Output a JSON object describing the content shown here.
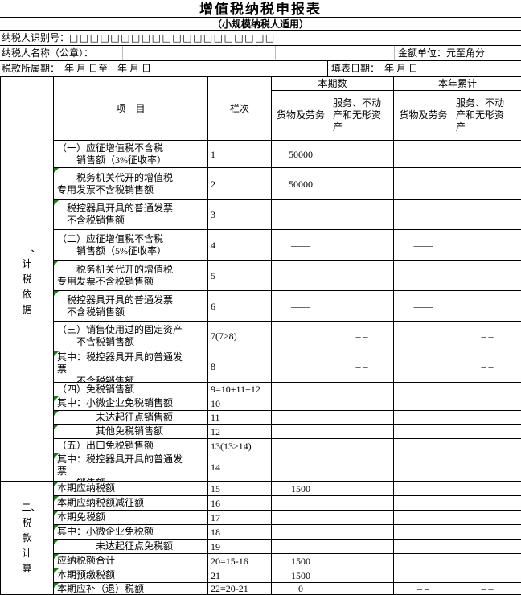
{
  "header": {
    "title": "增值税纳税申报表",
    "subtitle": "（小规模纳税人适用）",
    "taxpayer_id": {
      "label": "纳税人识别号：",
      "boxes": "□□□□□□□□□□□□□□□□□□□□"
    },
    "taxpayer_name": {
      "label": "纳税人名称（公章）：",
      "value": ""
    },
    "amount_unit": "金额单位：元至角分",
    "tax_period": "税款所属期：　年 月 日至　年 月 日",
    "fill_date": "填表日期：　年 月 日"
  },
  "table": {
    "header": {
      "item": "项　目",
      "column_no": "栏次",
      "current_period": "本期数",
      "year_to_date": "本年累计",
      "goods_and_services": "货物及劳务",
      "services_immovables_intangibles": "服务、不动\n产和无形资\n产"
    },
    "sections": [
      {
        "label": "一、计税依据"
      },
      {
        "label": "二、税款计算"
      }
    ],
    "colors": {
      "marker_green": "#1f7a1f",
      "border_black": "#000000",
      "light_grid_gray": "#bcbcbc"
    },
    "rows": [
      {
        "label": "（一）应征增值税不含税\n　　销售额（3%征收率）",
        "col": "1",
        "current_goods": "50000",
        "current_services": "",
        "ytd_goods": "",
        "ytd_services": "",
        "marker": false
      },
      {
        "label": "　　税务机关代开的增值税\n专用发票不含税销售额",
        "col": "2",
        "current_goods": "50000",
        "current_services": "",
        "ytd_goods": "",
        "ytd_services": "",
        "marker": true
      },
      {
        "label": "　税控器具开具的普通发票\n　不含税销售额",
        "col": "3",
        "current_goods": "",
        "current_services": "",
        "ytd_goods": "",
        "ytd_services": "",
        "marker": true
      },
      {
        "label": "（二）应征增值税不含税\n　　销售额（5%征收率）",
        "col": "4",
        "current_goods": "——",
        "current_services": "",
        "ytd_goods": "——",
        "ytd_services": "",
        "marker": false
      },
      {
        "label": "　　税务机关代开的增值税\n专用发票不含税销售额",
        "col": "5",
        "current_goods": "——",
        "current_services": "",
        "ytd_goods": "——",
        "ytd_services": "",
        "marker": true
      },
      {
        "label": "　税控器具开具的普通发票\n　不含税销售额",
        "col": "6",
        "current_goods": "——",
        "current_services": "",
        "ytd_goods": "——",
        "ytd_services": "",
        "marker": true
      },
      {
        "label": "（三）销售使用过的固定资产\n　　不含税销售额",
        "col": "7(7≥8)",
        "current_goods": "",
        "current_services": "– –",
        "ytd_goods": "",
        "ytd_services": "– –",
        "marker": false
      },
      {
        "label": "其中：税控器具开具的普通发\n票\n　　不含税销售额",
        "col": "8",
        "current_goods": "",
        "current_services": "– –",
        "ytd_goods": "",
        "ytd_services": "– –",
        "marker": true
      },
      {
        "label": "（四）免税销售额",
        "col": "9=10+11+12",
        "current_goods": "",
        "current_services": "",
        "ytd_goods": "",
        "ytd_services": "",
        "marker": false
      },
      {
        "label": "其中：小微企业免税销售额",
        "col": "10",
        "current_goods": "",
        "current_services": "",
        "ytd_goods": "",
        "ytd_services": "",
        "marker": true
      },
      {
        "label": "　　　　未达起征点销售额",
        "col": "11",
        "current_goods": "",
        "current_services": "",
        "ytd_goods": "",
        "ytd_services": "",
        "marker": true
      },
      {
        "label": "　　　　其他免税销售额",
        "col": "12",
        "current_goods": "",
        "current_services": "",
        "ytd_goods": "",
        "ytd_services": "",
        "marker": true
      },
      {
        "label": "（五）出口免税销售额",
        "col": "13(13≥14)",
        "current_goods": "",
        "current_services": "",
        "ytd_goods": "",
        "ytd_services": "",
        "marker": false
      },
      {
        "label": "其中：税控器具开具的普通发\n票\n　　销售额",
        "col": "14",
        "current_goods": "",
        "current_services": "",
        "ytd_goods": "",
        "ytd_services": "",
        "marker": true
      },
      {
        "label": "本期应纳税额",
        "col": "15",
        "current_goods": "1500",
        "current_services": "",
        "ytd_goods": "",
        "ytd_services": "",
        "marker": true
      },
      {
        "label": "本期应纳税额减征额",
        "col": "16",
        "current_goods": "",
        "current_services": "",
        "ytd_goods": "",
        "ytd_services": "",
        "marker": true
      },
      {
        "label": "本期免税额",
        "col": "17",
        "current_goods": "",
        "current_services": "",
        "ytd_goods": "",
        "ytd_services": "",
        "marker": true
      },
      {
        "label": "其中：小微企业免税额",
        "col": "18",
        "current_goods": "",
        "current_services": "",
        "ytd_goods": "",
        "ytd_services": "",
        "marker": true
      },
      {
        "label": "　　　　未达起征点免税额",
        "col": "19",
        "current_goods": "",
        "current_services": "",
        "ytd_goods": "",
        "ytd_services": "",
        "marker": true
      },
      {
        "label": "应纳税额合计",
        "col": "20=15-16",
        "current_goods": "1500",
        "current_services": "",
        "ytd_goods": "",
        "ytd_services": "",
        "marker": true
      },
      {
        "label": "本期预缴税额",
        "col": "21",
        "current_goods": "1500",
        "current_services": "",
        "ytd_goods": "– –",
        "ytd_services": "– –",
        "marker": true
      },
      {
        "label": "本期应补（退）税额",
        "col": "22=20-21",
        "current_goods": "0",
        "current_services": "",
        "ytd_goods": "– –",
        "ytd_services": "– –",
        "marker": true
      }
    ]
  }
}
